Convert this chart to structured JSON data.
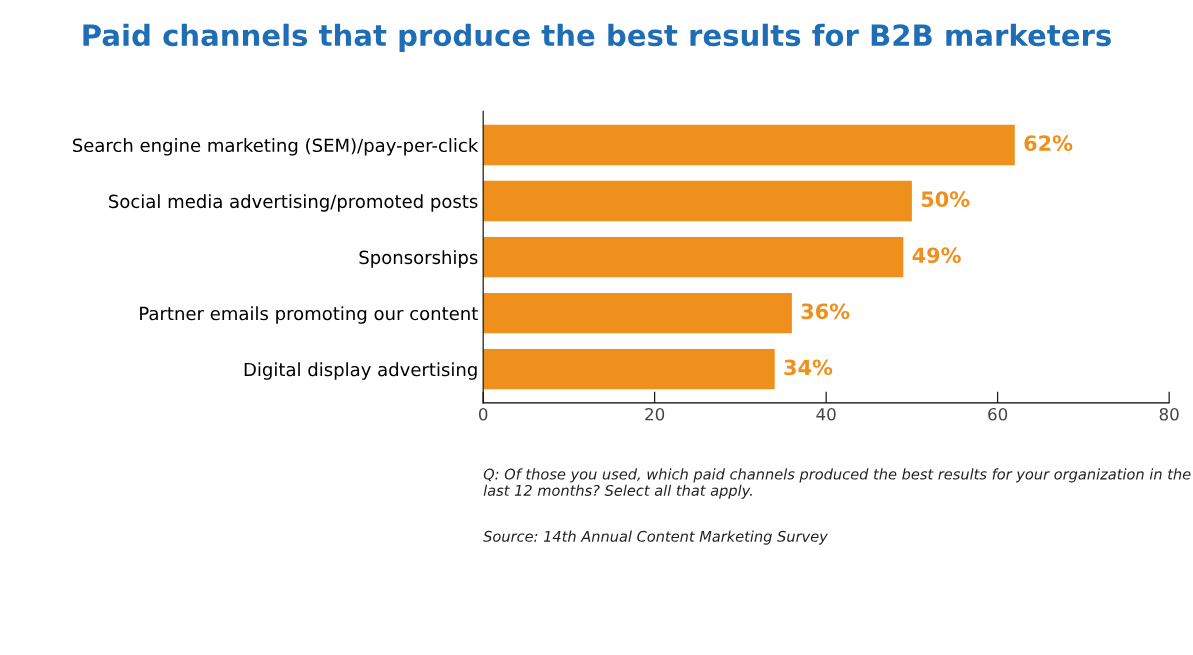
{
  "chart_data": {
    "type": "bar",
    "orientation": "horizontal",
    "title": "Paid channels that produce the best results for B2B marketers",
    "categories": [
      "Search engine marketing (SEM)/pay-per-click",
      "Social media advertising/promoted posts",
      "Sponsorships",
      "Partner emails promoting our content",
      "Digital display advertising"
    ],
    "values": [
      62,
      50,
      49,
      36,
      34
    ],
    "value_labels": [
      "62%",
      "50%",
      "49%",
      "36%",
      "34%"
    ],
    "color": "#ef8f1c",
    "xlim": [
      0,
      80
    ],
    "xticks": [
      0,
      20,
      40,
      60,
      80
    ],
    "grid": false,
    "legend": false,
    "annotations": [
      "Q: Of those you used, which paid channels produced the best results for your organization in the last 12 months? Select all that apply.",
      "Source: 14th Annual Content Marketing Survey"
    ]
  }
}
